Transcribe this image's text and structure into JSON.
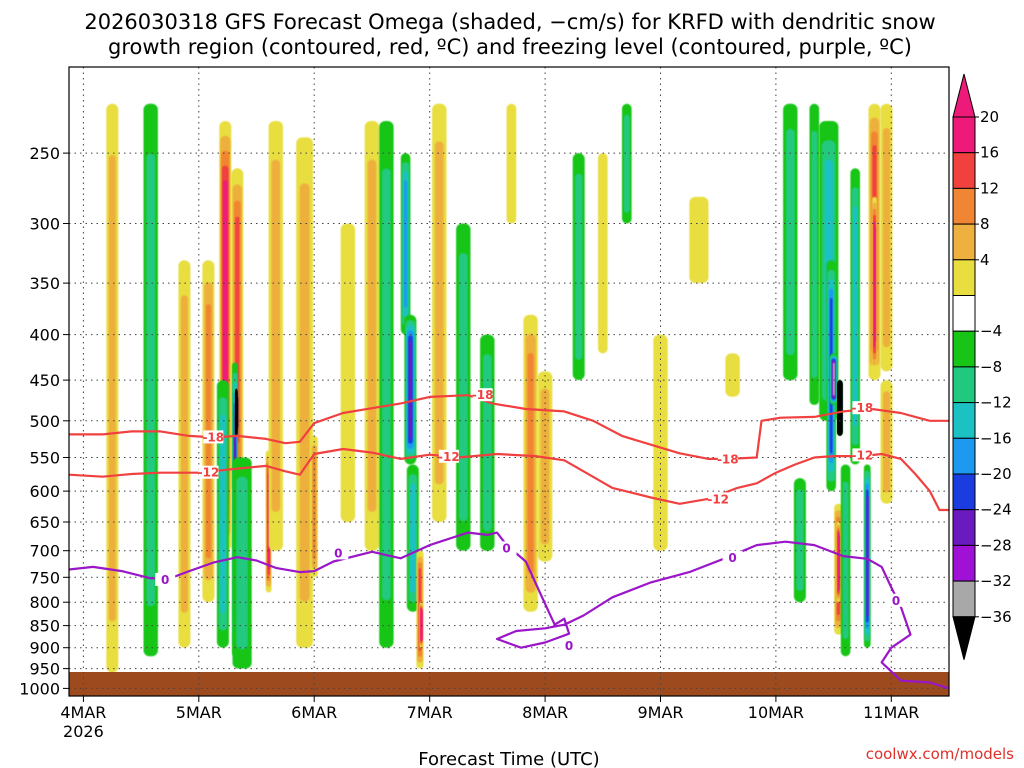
{
  "chart_data": {
    "type": "heatmap",
    "title_line1": "2026030318 GFS Forecast Omega (shaded, −cm/s) for KRFD with dendritic snow",
    "title_line2": "growth region (contoured, red, ºC) and freezing level (contoured, purple, ºC)",
    "xlabel": "Forecast Time (UTC)",
    "ylabel": "",
    "x_ticks": [
      {
        "t": 0,
        "label": "4MAR",
        "sublabel": "2026"
      },
      {
        "t": 24,
        "label": "5MAR"
      },
      {
        "t": 48,
        "label": "6MAR"
      },
      {
        "t": 72,
        "label": "7MAR"
      },
      {
        "t": 96,
        "label": "8MAR"
      },
      {
        "t": 120,
        "label": "9MAR"
      },
      {
        "t": 144,
        "label": "10MAR"
      },
      {
        "t": 168,
        "label": "11MAR"
      }
    ],
    "xlim_hours": [
      -3,
      180
    ],
    "y_ticks": [
      250,
      300,
      350,
      400,
      450,
      500,
      550,
      600,
      650,
      700,
      750,
      800,
      850,
      900,
      950,
      1000
    ],
    "ylim_hPa": [
      200,
      1020
    ],
    "y_scale": "log-pressure",
    "grid": true,
    "colorbar": {
      "ticks": [
        "20",
        "16",
        "12",
        "8",
        "4",
        "−4",
        "−8",
        "−12",
        "−16",
        "−20",
        "−24",
        "−28",
        "−32",
        "−36"
      ],
      "bands": [
        {
          "low": 20,
          "high": 24,
          "color": "#ee1a7a"
        },
        {
          "low": 16,
          "high": 20,
          "color": "#f0413f"
        },
        {
          "low": 12,
          "high": 16,
          "color": "#f08633"
        },
        {
          "low": 8,
          "high": 12,
          "color": "#eeb03e"
        },
        {
          "low": 4,
          "high": 8,
          "color": "#e8de40"
        },
        {
          "low": -4,
          "high": 4,
          "color": "#ffffff"
        },
        {
          "low": -8,
          "high": -4,
          "color": "#16c516"
        },
        {
          "low": -12,
          "high": -8,
          "color": "#21c97e"
        },
        {
          "low": -16,
          "high": -12,
          "color": "#1cc1c4"
        },
        {
          "low": -20,
          "high": -16,
          "color": "#1d9af0"
        },
        {
          "low": -24,
          "high": -20,
          "color": "#1b3de0"
        },
        {
          "low": -28,
          "high": -24,
          "color": "#6b1ac0"
        },
        {
          "low": -32,
          "high": -28,
          "color": "#a011d8"
        },
        {
          "low": -36,
          "high": -32,
          "color": "#a8a8a8"
        }
      ],
      "low_end_color": "#000000"
    },
    "omega_features": [
      {
        "t": 6,
        "p_top": 220,
        "p_bot": 960,
        "w": 2.5,
        "v": 6
      },
      {
        "t": 14,
        "p_top": 220,
        "p_bot": 920,
        "w": 3,
        "v": -8
      },
      {
        "t": 21,
        "p_top": 330,
        "p_bot": 900,
        "w": 2.5,
        "v": 6
      },
      {
        "t": 26,
        "p_top": 330,
        "p_bot": 800,
        "w": 2.5,
        "v": 10
      },
      {
        "t": 29.5,
        "p_top": 230,
        "p_bot": 700,
        "w": 2.5,
        "v": 22
      },
      {
        "t": 32,
        "p_top": 260,
        "p_bot": 600,
        "w": 2.5,
        "v": 14
      },
      {
        "t": 31.5,
        "p_top": 430,
        "p_bot": 920,
        "w": 1.2,
        "v": -24
      },
      {
        "t": 31.8,
        "p_top": 460,
        "p_bot": 520,
        "w": 0.6,
        "v": -40
      },
      {
        "t": 29,
        "p_top": 450,
        "p_bot": 900,
        "w": 2.5,
        "v": -12
      },
      {
        "t": 33,
        "p_top": 550,
        "p_bot": 950,
        "w": 4,
        "v": -8
      },
      {
        "t": 38.5,
        "p_top": 540,
        "p_bot": 780,
        "w": 1.2,
        "v": 18
      },
      {
        "t": 40,
        "p_top": 230,
        "p_bot": 700,
        "w": 3,
        "v": 6
      },
      {
        "t": 46,
        "p_top": 240,
        "p_bot": 900,
        "w": 3.5,
        "v": 8
      },
      {
        "t": 48,
        "p_top": 520,
        "p_bot": 750,
        "w": 1.5,
        "v": 12
      },
      {
        "t": 55,
        "p_top": 300,
        "p_bot": 650,
        "w": 3,
        "v": 4.5
      },
      {
        "t": 60,
        "p_top": 230,
        "p_bot": 700,
        "w": 3,
        "v": 6
      },
      {
        "t": 63,
        "p_top": 230,
        "p_bot": 900,
        "w": 3,
        "v": -6
      },
      {
        "t": 67,
        "p_top": 250,
        "p_bot": 400,
        "w": 2,
        "v": -14
      },
      {
        "t": 68,
        "p_top": 380,
        "p_bot": 560,
        "w": 2.5,
        "v": -22
      },
      {
        "t": 68.5,
        "p_top": 560,
        "p_bot": 820,
        "w": 2.5,
        "v": -10
      },
      {
        "t": 70,
        "p_top": 700,
        "p_bot": 950,
        "w": 1.5,
        "v": 14
      },
      {
        "t": 70.2,
        "p_top": 800,
        "p_bot": 900,
        "w": 0.6,
        "v": 22
      },
      {
        "t": 74,
        "p_top": 220,
        "p_bot": 650,
        "w": 3,
        "v": 6
      },
      {
        "t": 79,
        "p_top": 300,
        "p_bot": 700,
        "w": 3,
        "v": -6
      },
      {
        "t": 84,
        "p_top": 400,
        "p_bot": 700,
        "w": 3,
        "v": -6
      },
      {
        "t": 89,
        "p_top": 220,
        "p_bot": 300,
        "w": 2,
        "v": 5
      },
      {
        "t": 93,
        "p_top": 380,
        "p_bot": 820,
        "w": 3,
        "v": 10
      },
      {
        "t": 96,
        "p_top": 440,
        "p_bot": 720,
        "w": 3,
        "v": 6
      },
      {
        "t": 103,
        "p_top": 250,
        "p_bot": 450,
        "w": 2.5,
        "v": -6
      },
      {
        "t": 108,
        "p_top": 250,
        "p_bot": 420,
        "w": 2,
        "v": 5
      },
      {
        "t": 113,
        "p_top": 220,
        "p_bot": 300,
        "w": 2,
        "v": -6
      },
      {
        "t": 120,
        "p_top": 400,
        "p_bot": 700,
        "w": 3,
        "v": 5
      },
      {
        "t": 128,
        "p_top": 280,
        "p_bot": 350,
        "w": 4,
        "v": 4.5
      },
      {
        "t": 135,
        "p_top": 420,
        "p_bot": 470,
        "w": 3,
        "v": 5
      },
      {
        "t": 147,
        "p_top": 220,
        "p_bot": 450,
        "w": 3,
        "v": -6
      },
      {
        "t": 152,
        "p_top": 220,
        "p_bot": 480,
        "w": 2,
        "v": -8
      },
      {
        "t": 149,
        "p_top": 580,
        "p_bot": 800,
        "w": 2.5,
        "v": -8
      },
      {
        "t": 155,
        "p_top": 230,
        "p_bot": 500,
        "w": 4,
        "v": -12
      },
      {
        "t": 155.5,
        "p_top": 330,
        "p_bot": 600,
        "w": 2,
        "v": -20
      },
      {
        "t": 156,
        "p_top": 420,
        "p_bot": 480,
        "w": 1.6,
        "v": -30
      },
      {
        "t": 157.3,
        "p_top": 450,
        "p_bot": 520,
        "w": 1.2,
        "v": -40
      },
      {
        "t": 157,
        "p_top": 620,
        "p_bot": 870,
        "w": 1.8,
        "v": 16
      },
      {
        "t": 157,
        "p_top": 650,
        "p_bot": 800,
        "w": 0.9,
        "v": 22
      },
      {
        "t": 158.5,
        "p_top": 560,
        "p_bot": 920,
        "w": 2,
        "v": -8
      },
      {
        "t": 160.5,
        "p_top": 260,
        "p_bot": 560,
        "w": 2,
        "v": -12
      },
      {
        "t": 163,
        "p_top": 560,
        "p_bot": 900,
        "w": 1.4,
        "v": -24
      },
      {
        "t": 164.5,
        "p_top": 220,
        "p_bot": 450,
        "w": 2.5,
        "v": 14
      },
      {
        "t": 164.5,
        "p_top": 280,
        "p_bot": 440,
        "w": 1,
        "v": 22
      },
      {
        "t": 167,
        "p_top": 220,
        "p_bot": 440,
        "w": 2.5,
        "v": 8
      },
      {
        "t": 167,
        "p_top": 450,
        "p_bot": 620,
        "w": 2.5,
        "v": 6
      }
    ],
    "contours": [
      {
        "name": "-18",
        "color": "#f04040",
        "label": "-18",
        "label_positions": [
          [
            27,
            522
          ],
          [
            83,
            468
          ],
          [
            134,
            553
          ],
          [
            162,
            484
          ]
        ],
        "points": [
          [
            -3,
            518
          ],
          [
            4,
            518
          ],
          [
            10,
            514
          ],
          [
            16,
            514
          ],
          [
            22,
            520
          ],
          [
            27,
            522
          ],
          [
            32,
            520
          ],
          [
            38,
            524
          ],
          [
            42,
            530
          ],
          [
            45,
            528
          ],
          [
            48,
            503
          ],
          [
            54,
            490
          ],
          [
            60,
            484
          ],
          [
            66,
            478
          ],
          [
            72,
            470
          ],
          [
            80,
            468
          ],
          [
            85,
            478
          ],
          [
            92,
            485
          ],
          [
            100,
            488
          ],
          [
            106,
            500
          ],
          [
            112,
            520
          ],
          [
            118,
            532
          ],
          [
            124,
            544
          ],
          [
            130,
            552
          ],
          [
            134,
            552
          ],
          [
            140,
            550
          ],
          [
            141,
            500
          ],
          [
            145,
            496
          ],
          [
            152,
            495
          ],
          [
            158,
            488
          ],
          [
            164,
            485
          ],
          [
            170,
            490
          ],
          [
            173,
            495
          ],
          [
            176,
            500
          ],
          [
            180,
            500
          ]
        ]
      },
      {
        "name": "-12",
        "color": "#f04040",
        "label": "-12",
        "label_positions": [
          [
            26,
            572
          ],
          [
            76,
            549
          ],
          [
            132,
            613
          ],
          [
            162,
            547
          ]
        ],
        "points": [
          [
            -3,
            575
          ],
          [
            4,
            578
          ],
          [
            10,
            574
          ],
          [
            16,
            572
          ],
          [
            24,
            572
          ],
          [
            32,
            566
          ],
          [
            38,
            562
          ],
          [
            42,
            570
          ],
          [
            45,
            575
          ],
          [
            48,
            545
          ],
          [
            54,
            538
          ],
          [
            60,
            543
          ],
          [
            66,
            552
          ],
          [
            72,
            546
          ],
          [
            78,
            550
          ],
          [
            86,
            545
          ],
          [
            94,
            548
          ],
          [
            100,
            554
          ],
          [
            104,
            570
          ],
          [
            110,
            595
          ],
          [
            118,
            610
          ],
          [
            124,
            620
          ],
          [
            130,
            612
          ],
          [
            136,
            595
          ],
          [
            140,
            588
          ],
          [
            144,
            572
          ],
          [
            148,
            560
          ],
          [
            152,
            550
          ],
          [
            156,
            548
          ],
          [
            162,
            548
          ],
          [
            166,
            545
          ],
          [
            170,
            552
          ],
          [
            173,
            574
          ],
          [
            176,
            600
          ],
          [
            178,
            630
          ],
          [
            180,
            630
          ]
        ]
      },
      {
        "name": "0",
        "color": "#9a16c8",
        "label": "0",
        "label_positions": [
          [
            17,
            755
          ],
          [
            53,
            705
          ],
          [
            88,
            696
          ],
          [
            135,
            713
          ],
          [
            169,
            797
          ],
          [
            101,
            896
          ]
        ],
        "points": [
          [
            -3,
            735
          ],
          [
            2,
            730
          ],
          [
            8,
            738
          ],
          [
            14,
            752
          ],
          [
            18,
            752
          ],
          [
            22,
            738
          ],
          [
            27,
            722
          ],
          [
            32,
            712
          ],
          [
            36,
            718
          ],
          [
            40,
            732
          ],
          [
            45,
            740
          ],
          [
            48,
            738
          ],
          [
            52,
            720
          ],
          [
            60,
            702
          ],
          [
            66,
            714
          ],
          [
            72,
            690
          ],
          [
            80,
            668
          ],
          [
            84,
            672
          ],
          [
            86,
            668
          ],
          [
            88,
            690
          ],
          [
            92,
            720
          ],
          [
            95,
            782
          ],
          [
            98,
            848
          ],
          [
            100,
            835
          ],
          [
            101,
            868
          ],
          [
            96,
            888
          ],
          [
            91,
            900
          ],
          [
            86,
            880
          ],
          [
            90,
            862
          ],
          [
            96,
            856
          ],
          [
            100,
            848
          ],
          [
            104,
            828
          ],
          [
            110,
            790
          ],
          [
            118,
            760
          ],
          [
            126,
            740
          ],
          [
            134,
            712
          ],
          [
            140,
            690
          ],
          [
            146,
            684
          ],
          [
            152,
            690
          ],
          [
            158,
            710
          ],
          [
            163,
            715
          ],
          [
            166,
            730
          ],
          [
            168,
            770
          ],
          [
            170,
            810
          ],
          [
            172,
            870
          ],
          [
            168,
            900
          ],
          [
            166,
            935
          ],
          [
            170,
            980
          ],
          [
            176,
            985
          ],
          [
            180,
            1000
          ]
        ]
      }
    ]
  },
  "credit": "coolwx.com/models"
}
